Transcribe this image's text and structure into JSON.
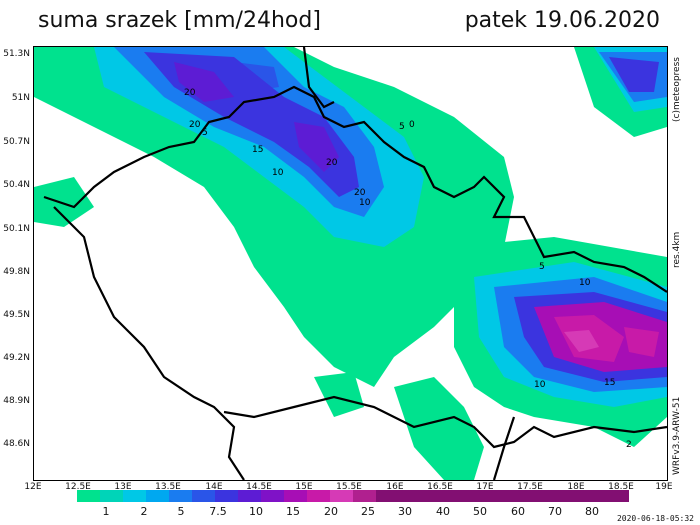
{
  "header": {
    "title": "suma srazek [mm/24hod]",
    "date": "patek 19.06.2020"
  },
  "axes": {
    "y_ticks": [
      "51.3N",
      "51N",
      "50.7N",
      "50.4N",
      "50.1N",
      "49.8N",
      "49.5N",
      "49.2N",
      "48.9N",
      "48.6N"
    ],
    "x_ticks": [
      "12E",
      "12.5E",
      "13E",
      "13.5E",
      "14E",
      "14.5E",
      "15E",
      "15.5E",
      "16E",
      "16.5E",
      "17E",
      "17.5E",
      "18E",
      "18.5E",
      "19E"
    ]
  },
  "side_labels": {
    "copyright": "(c)meteopress",
    "resolution": "res.4km",
    "model": "WRFv3.9-ARW-51"
  },
  "legend": {
    "labels": [
      "1",
      "2",
      "5",
      "7.5",
      "10",
      "15",
      "20",
      "25",
      "30",
      "40",
      "50",
      "60",
      "70",
      "80"
    ],
    "colors": [
      "#ffffff",
      "#00e28e",
      "#00d4b8",
      "#00c8e6",
      "#00a8f0",
      "#1a7cf0",
      "#2a55e8",
      "#3b34df",
      "#5d1cd4",
      "#7f12c7",
      "#a70eb5",
      "#c81aa8",
      "#d63ab6",
      "#b0208f",
      "#820f72"
    ]
  },
  "timestamp": "2020-06-18-05:32"
}
